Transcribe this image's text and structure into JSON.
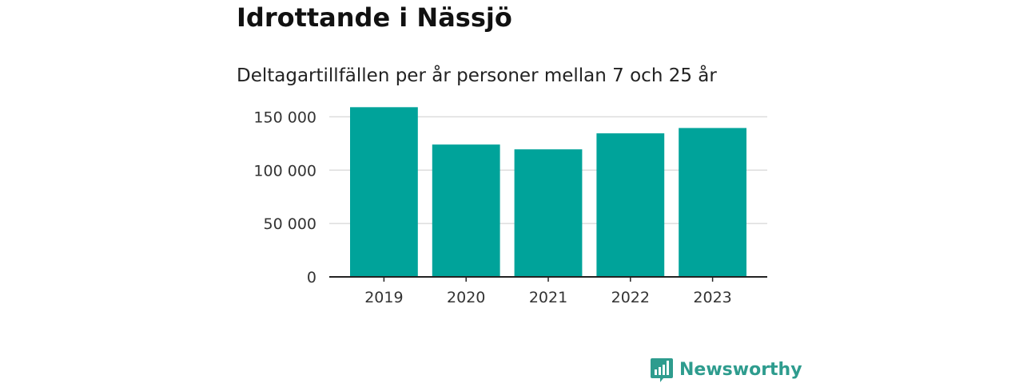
{
  "title": "Idrottande i Nässjö",
  "subtitle": "Deltagartillfällen per år personer mellan 7 och 25 år",
  "brand": {
    "name": "Newsworthy",
    "logo_icon": "newsworthy-bar-chart-logo-icon",
    "color": "#2e9c8e"
  },
  "colors": {
    "bar": "#00a39a",
    "grid": "#dddddd",
    "axis": "#222222"
  },
  "chart_data": {
    "type": "bar",
    "title": "Idrottande i Nässjö",
    "subtitle": "Deltagartillfällen per år personer mellan 7 och 25 år",
    "xlabel": "",
    "ylabel": "",
    "categories": [
      "2019",
      "2020",
      "2021",
      "2022",
      "2023"
    ],
    "values": [
      159000,
      124000,
      119500,
      134500,
      139500
    ],
    "ylim": [
      0,
      160000
    ],
    "yticks": [
      0,
      50000,
      100000,
      150000
    ],
    "ytick_labels": [
      "0",
      "50 000",
      "100 000",
      "150 000"
    ],
    "grid": true,
    "legend": "none"
  }
}
